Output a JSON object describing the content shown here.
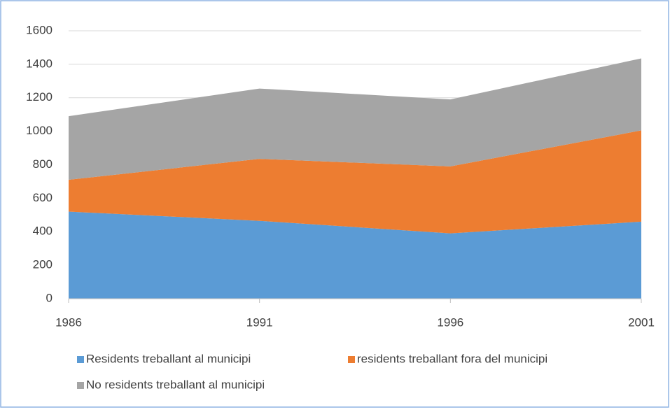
{
  "chart_data": {
    "type": "stacked_area",
    "categories": [
      "1986",
      "1991",
      "1996",
      "2001"
    ],
    "series": [
      {
        "name": "Residents treballant al municipi",
        "color": "#5b9bd5",
        "values": [
          520,
          465,
          390,
          460
        ]
      },
      {
        "name": "residents treballant fora del municipi",
        "color": "#ed7d31",
        "values": [
          190,
          370,
          400,
          545
        ]
      },
      {
        "name": "No residents treballant al municipi",
        "color": "#a5a5a5",
        "values": [
          380,
          420,
          400,
          430
        ]
      }
    ],
    "ylim": [
      0,
      1600
    ],
    "yticks": [
      0,
      200,
      400,
      600,
      800,
      1000,
      1200,
      1400,
      1600
    ],
    "grid": true
  }
}
